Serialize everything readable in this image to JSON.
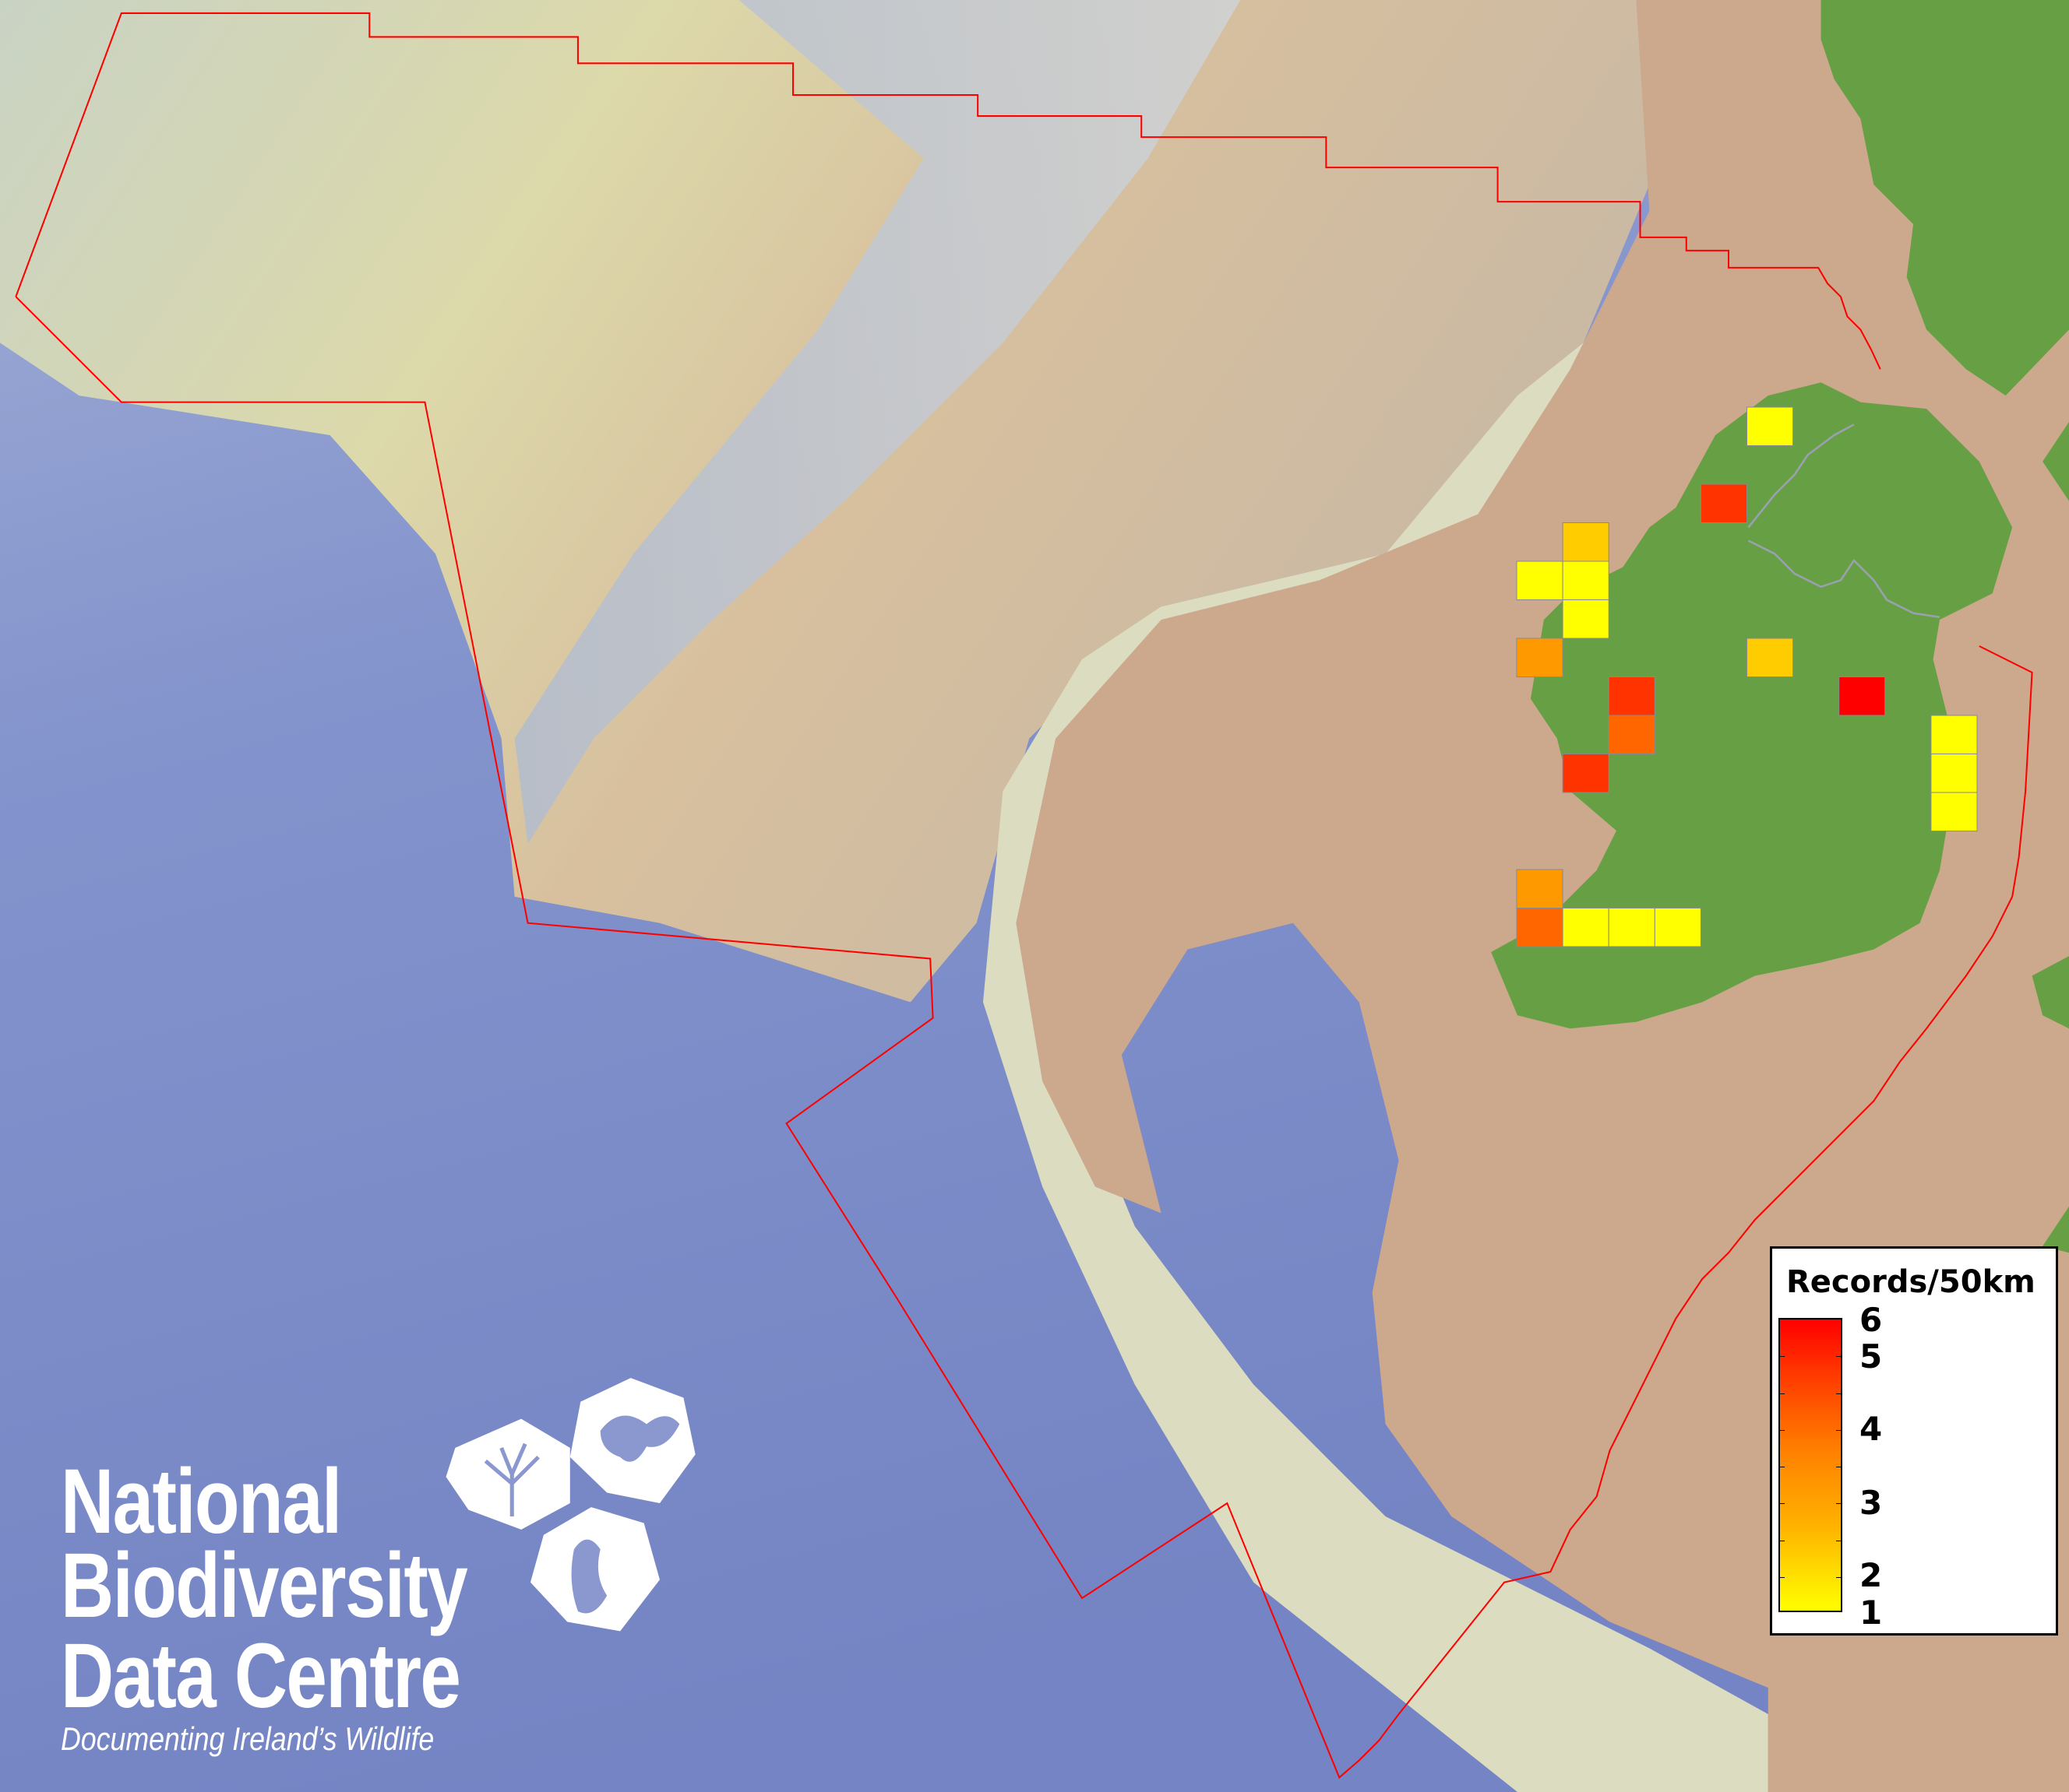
{
  "map": {
    "colors": {
      "deep_ocean": "#7d8cc8",
      "slope": "#c8cfd4",
      "shelf_upper": "#dedcae",
      "shallow_shelf": "#cca88c",
      "land": "#67a044",
      "boundary": "#ff0000",
      "grid_outline": "#8a8a8a"
    },
    "grid_cells": [
      {
        "value": 1,
        "color": "#ffff00"
      },
      {
        "value": 5,
        "color": "#ff3300"
      },
      {
        "value": 2,
        "color": "#ffcc00"
      },
      {
        "value": 1,
        "color": "#ffff00"
      },
      {
        "value": 1,
        "color": "#ffff00"
      },
      {
        "value": 1,
        "color": "#ffff00"
      },
      {
        "value": 3,
        "color": "#ff9900"
      },
      {
        "value": 2,
        "color": "#ffcc00"
      },
      {
        "value": 5,
        "color": "#ff3300"
      },
      {
        "value": 6,
        "color": "#ff0000"
      },
      {
        "value": 4,
        "color": "#ff6600"
      },
      {
        "value": 1,
        "color": "#ffff00"
      },
      {
        "value": 1,
        "color": "#ffff00"
      },
      {
        "value": 1,
        "color": "#ffff00"
      },
      {
        "value": 5,
        "color": "#ff3300"
      },
      {
        "value": 3,
        "color": "#ff9900"
      },
      {
        "value": 4,
        "color": "#ff6600"
      },
      {
        "value": 1,
        "color": "#ffff00"
      },
      {
        "value": 1,
        "color": "#ffff00"
      },
      {
        "value": 1,
        "color": "#ffff00"
      }
    ]
  },
  "legend": {
    "title": "Records/50km",
    "min": 1,
    "max": 6,
    "color_low": "#ffff00",
    "color_high": "#ff0000",
    "labels": [
      "6",
      "5",
      "4",
      "3",
      "2",
      "1"
    ]
  },
  "logo": {
    "line1": "National",
    "line2": "Biodiversity",
    "line3": "Data Centre",
    "tagline": "Documenting Ireland’s Wildlife",
    "icons": [
      "tree-icon",
      "butterfly-icon",
      "seahorse-icon"
    ]
  }
}
